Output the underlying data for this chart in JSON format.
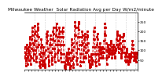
{
  "title": "Milwaukee Weather  Solar Radiation Avg per Day W/m2/minute",
  "title_fontsize": 4.2,
  "bg_color": "#ffffff",
  "line_color": "#cc0000",
  "line_style": "--",
  "line_width": 0.7,
  "marker": "s",
  "marker_size": 1.2,
  "marker_color": "#cc0000",
  "ylim": [
    0,
    300
  ],
  "yticks": [
    50,
    100,
    150,
    200,
    250
  ],
  "ytick_labels": [
    "50",
    "100",
    "150",
    "200",
    "250"
  ],
  "ytick_fontsize": 3.2,
  "xtick_fontsize": 2.8,
  "grid_color": "#bbbbbb",
  "grid_linestyle": ":",
  "grid_linewidth": 0.5,
  "values": [
    60,
    120,
    90,
    50,
    20,
    80,
    130,
    110,
    60,
    30,
    70,
    100,
    120,
    90,
    50,
    80,
    140,
    170,
    130,
    70,
    30,
    60,
    110,
    160,
    200,
    220,
    180,
    140,
    100,
    50,
    80,
    130,
    190,
    230,
    200,
    150,
    100,
    60,
    40,
    70,
    120,
    180,
    220,
    240,
    210,
    170,
    130,
    80,
    40,
    20,
    10,
    30,
    70,
    120,
    160,
    130,
    90,
    50,
    30,
    20,
    40,
    80,
    120,
    90,
    50,
    20,
    10,
    30,
    60,
    100,
    140,
    170,
    190,
    200,
    180,
    150,
    110,
    70,
    40,
    20,
    50,
    90,
    130,
    160,
    180,
    160,
    130,
    90,
    50,
    30,
    60,
    110,
    160,
    200,
    220,
    190,
    150,
    110,
    70,
    40,
    80,
    130,
    180,
    220,
    240,
    210,
    170,
    130,
    90,
    50,
    100,
    150,
    190,
    220,
    200,
    170,
    130,
    90,
    60,
    40,
    80,
    130,
    170,
    200,
    220,
    200,
    170,
    130,
    80,
    40,
    20,
    10,
    5,
    15,
    30,
    50,
    70,
    90,
    80,
    60,
    40,
    30,
    50,
    80,
    110,
    90,
    60,
    30,
    10,
    5,
    20,
    50,
    90,
    130,
    160,
    140,
    100,
    60,
    30,
    10,
    30,
    70,
    120,
    180,
    230,
    250,
    220,
    180,
    140,
    90,
    50,
    30,
    60,
    110,
    170,
    220,
    250,
    240,
    210,
    170,
    130,
    80,
    40,
    20,
    40,
    80,
    130,
    170,
    200,
    180,
    140,
    100,
    60,
    40,
    70,
    120,
    160,
    190,
    170,
    130,
    90,
    60,
    90,
    130,
    170,
    200,
    180,
    140,
    100,
    70,
    50,
    40,
    30,
    20,
    10,
    15,
    30,
    60,
    80,
    60,
    40,
    30,
    50,
    80,
    120,
    160,
    200,
    220,
    200,
    160,
    120,
    80,
    40,
    20,
    40,
    80,
    130,
    170,
    190,
    160,
    120,
    80,
    50,
    30,
    60,
    100,
    140,
    120,
    90,
    60,
    80,
    110,
    90,
    60,
    90,
    120,
    90,
    60,
    90,
    110,
    150,
    190,
    220,
    240,
    220,
    180,
    140,
    100,
    60,
    30,
    60,
    100,
    130,
    120,
    90,
    70,
    90,
    110,
    100,
    80,
    100,
    130,
    150,
    140,
    120,
    90,
    60,
    80,
    100,
    120,
    100,
    130,
    120,
    90,
    60,
    70,
    90,
    100,
    110,
    100,
    130,
    160,
    190,
    200,
    180,
    150,
    120,
    90,
    110,
    130,
    160,
    180,
    170,
    140,
    110,
    80,
    60,
    70,
    90,
    100,
    120,
    150,
    170,
    190,
    180,
    150,
    120,
    90,
    70,
    50,
    40,
    50,
    80,
    100,
    110,
    90,
    70,
    50,
    40,
    30,
    50,
    70,
    80,
    60,
    40,
    50,
    70,
    80,
    60,
    70,
    90,
    110,
    130,
    150,
    130,
    110,
    90,
    70,
    50,
    60,
    80,
    90,
    70,
    50,
    40,
    60,
    70,
    80,
    90,
    80
  ],
  "n_xticks": 34,
  "vgrid_count": 11
}
